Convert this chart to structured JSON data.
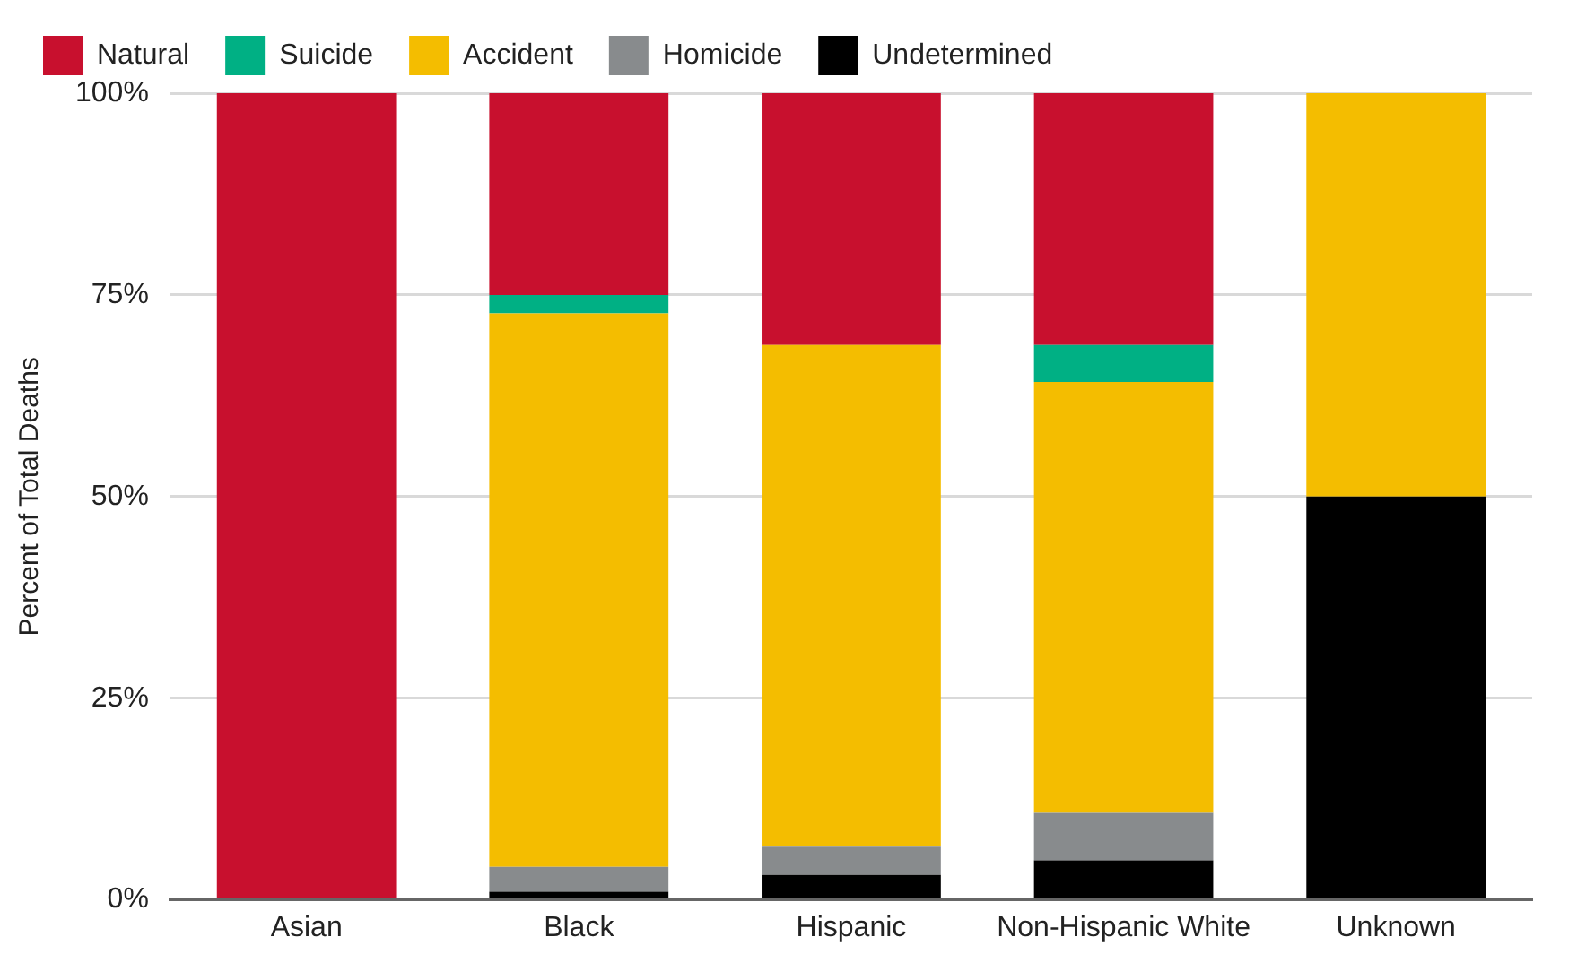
{
  "chart_data": {
    "type": "bar",
    "stacked": true,
    "ylabel": "Percent of Total Deaths",
    "categories": [
      "Asian",
      "Black",
      "Hispanic",
      "Non-Hispanic White",
      "Unknown"
    ],
    "series": [
      {
        "name": "Undetermined",
        "color": "#000000",
        "values": [
          0,
          1.0,
          3.1,
          4.9,
          50
        ]
      },
      {
        "name": "Homicide",
        "color": "#888b8d",
        "values": [
          0,
          3.1,
          3.5,
          5.9,
          0
        ]
      },
      {
        "name": "Accident",
        "color": "#f4bd00",
        "values": [
          0,
          68.6,
          62.2,
          53.4,
          50
        ]
      },
      {
        "name": "Suicide",
        "color": "#00b084",
        "values": [
          0,
          2.3,
          0,
          4.6,
          0
        ]
      },
      {
        "name": "Natural",
        "color": "#c8102e",
        "values": [
          100,
          25.0,
          31.2,
          31.2,
          0
        ]
      }
    ],
    "ylim": [
      0,
      100
    ],
    "yticks": [
      {
        "value": 0,
        "label": "0%"
      },
      {
        "value": 25,
        "label": "25%"
      },
      {
        "value": 50,
        "label": "50%"
      },
      {
        "value": 75,
        "label": "75%"
      },
      {
        "value": 100,
        "label": "100%"
      }
    ],
    "grid": "y",
    "legend": "top"
  }
}
